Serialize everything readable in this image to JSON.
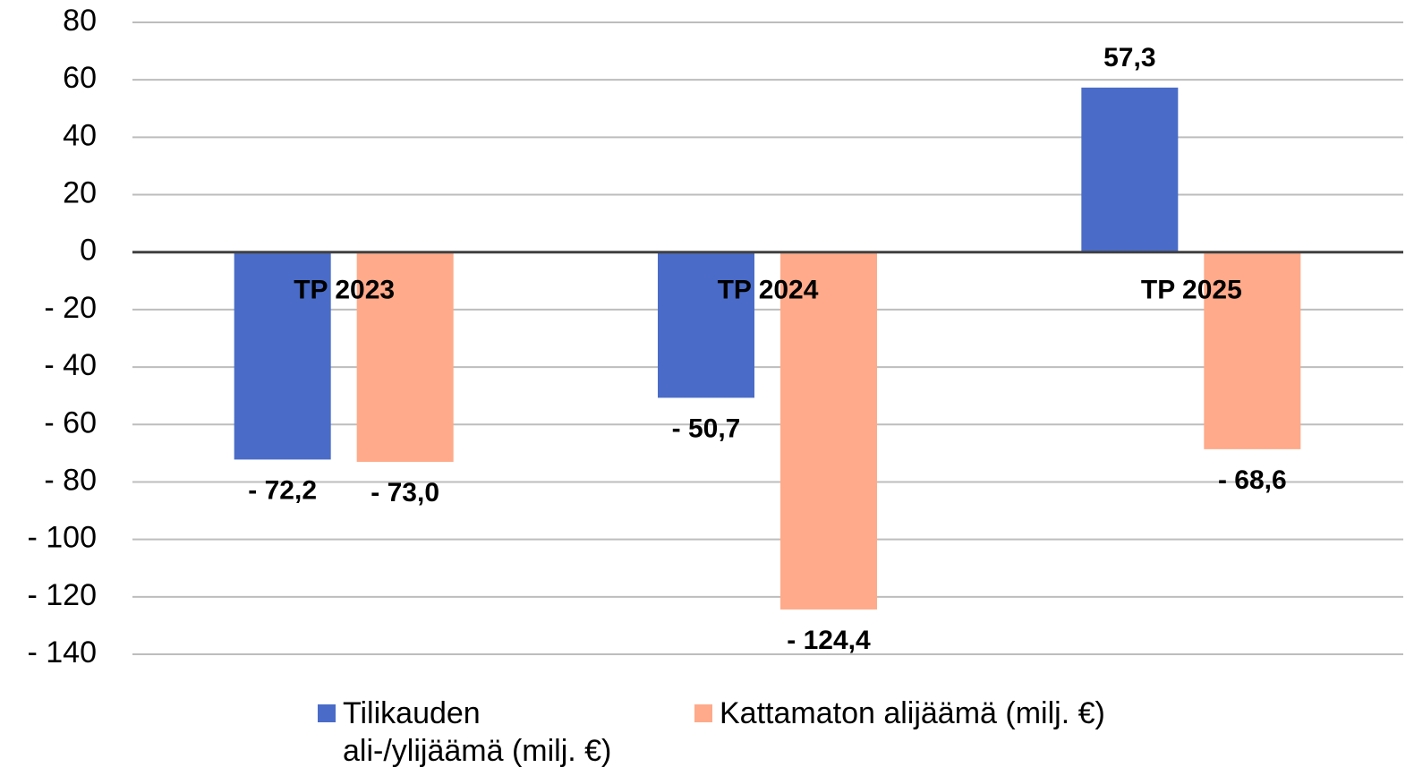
{
  "chart_data": {
    "type": "bar",
    "categories": [
      "TP 2023",
      "TP 2024",
      "TP 2025"
    ],
    "series": [
      {
        "name": "Tilikauden ali-/ylijäämä (milj. €)",
        "color": "#4a6cc8",
        "values": [
          -72.2,
          -50.7,
          57.3
        ],
        "value_labels": [
          "- 72,2",
          "- 50,7",
          "57,3"
        ]
      },
      {
        "name": "Kattamaton alijäämä (milj. €)",
        "color": "#ffaa8a",
        "values": [
          -73.0,
          -124.4,
          -68.6
        ],
        "value_labels": [
          "- 73,0",
          "- 124,4",
          "- 68,6"
        ]
      }
    ],
    "ylim": [
      -140,
      80
    ],
    "yticks": [
      {
        "value": -140,
        "label": "- 140"
      },
      {
        "value": -120,
        "label": "- 120"
      },
      {
        "value": -100,
        "label": "- 100"
      },
      {
        "value": -80,
        "label": "- 80"
      },
      {
        "value": -60,
        "label": "- 60"
      },
      {
        "value": -40,
        "label": "- 40"
      },
      {
        "value": -20,
        "label": "- 20"
      },
      0,
      20,
      40,
      60,
      80
    ],
    "grid": true
  }
}
